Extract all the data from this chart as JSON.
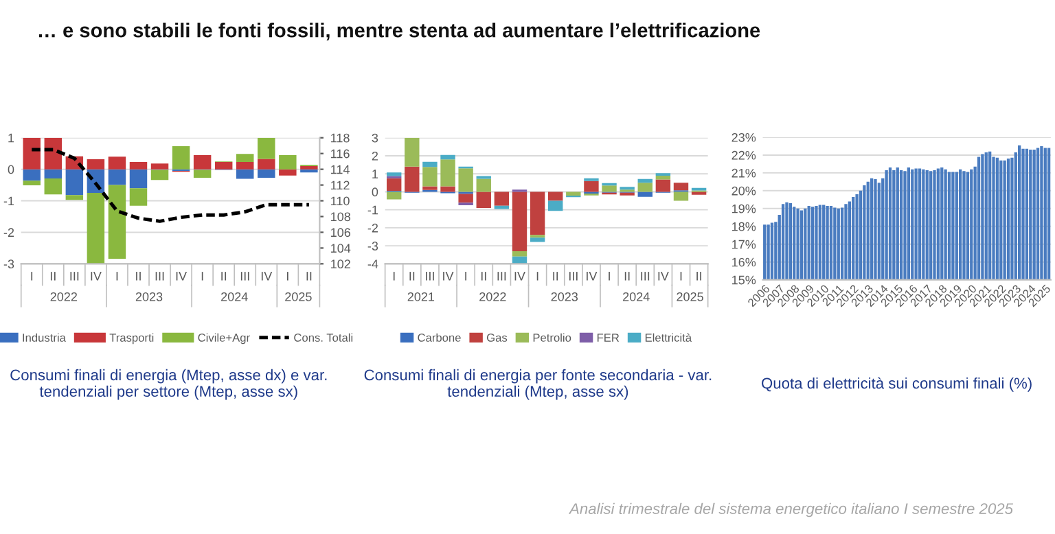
{
  "chart_data": [
    {
      "type": "bar",
      "title": "… e sono stabili le fonti fossili, mentre stenta ad aumentare l’elettrificazione",
      "categories": [
        "I",
        "II",
        "III",
        "IV",
        "I",
        "II",
        "III",
        "IV",
        "I",
        "II",
        "III",
        "IV",
        "I",
        "II"
      ],
      "series": [
        {
          "name": "Industria",
          "color": "#3a6fbf",
          "values": [
            -0.36,
            -0.29,
            -0.82,
            -0.75,
            -0.5,
            -0.6,
            -0.02,
            -0.05,
            -0.02,
            -0.02,
            -0.3,
            -0.27,
            0,
            -0.1
          ]
        },
        {
          "name": "Trasporti",
          "color": "#c8373a",
          "values": [
            1.0,
            1.0,
            0.41,
            0.32,
            0.4,
            0.23,
            0.18,
            -0.03,
            0.45,
            0.23,
            0.23,
            0.33,
            -0.2,
            0.1
          ]
        },
        {
          "name": "Civile+Agr",
          "color": "#8ab83f",
          "values": [
            -0.15,
            -0.51,
            -0.15,
            -2.25,
            -2.34,
            -0.56,
            -0.32,
            0.73,
            -0.25,
            0.02,
            0.26,
            0.67,
            0.45,
            0.04
          ]
        },
        {
          "name": "Cons. Totali",
          "type": "line",
          "axis": "y2",
          "color": "#000000",
          "line_style": "dashed",
          "values": [
            116.5,
            116.5,
            115.4,
            112.2,
            108.7,
            107.8,
            107.4,
            107.9,
            108.2,
            108.2,
            108.6,
            109.5,
            109.5,
            109.5
          ]
        }
      ],
      "stacked": true,
      "ylim": [
        -3,
        1
      ],
      "yticks": [
        -3,
        -2,
        -1,
        0,
        1
      ],
      "y2lim": [
        102,
        118
      ],
      "y2ticks": [
        102,
        104,
        106,
        108,
        110,
        112,
        114,
        116,
        118
      ],
      "grid": "y",
      "legend": "bottom",
      "annotations": [
        "2022",
        "2023",
        "2024",
        "2025",
        "Consumi finali di energia (Mtep, asse dx) e var. tendenziali per settore (Mtep, asse sx)"
      ]
    },
    {
      "type": "bar",
      "categories": [
        "I",
        "II",
        "III",
        "IV",
        "I",
        "II",
        "III",
        "IV",
        "I",
        "II",
        "III",
        "IV",
        "I",
        "II",
        "III",
        "IV",
        "I",
        "II"
      ],
      "series": [
        {
          "name": "Carbone",
          "color": "#3a6fbf",
          "values": [
            0.05,
            -0.05,
            0.1,
            -0.08,
            -0.12,
            0,
            0,
            0,
            0,
            0,
            0,
            -0.1,
            -0.05,
            -0.05,
            -0.28,
            -0.05,
            0.08,
            0
          ]
        },
        {
          "name": "Gas",
          "color": "#c0413f",
          "values": [
            0.7,
            1.4,
            0.2,
            0.3,
            -0.48,
            -0.9,
            -0.78,
            -3.3,
            -2.4,
            -0.5,
            0,
            0.6,
            -0.1,
            -0.15,
            0,
            0.68,
            0.42,
            -0.17
          ]
        },
        {
          "name": "Petrolio",
          "color": "#9bbb59",
          "values": [
            -0.42,
            1.6,
            1.08,
            1.5,
            1.3,
            0.72,
            0,
            -0.3,
            -0.15,
            0,
            -0.21,
            -0.1,
            0.35,
            0.12,
            0.5,
            0.21,
            -0.5,
            0.07
          ]
        },
        {
          "name": "FER",
          "color": "#7e5ea8",
          "values": [
            0.12,
            0,
            0,
            0,
            -0.15,
            0,
            0,
            0.12,
            0,
            0,
            0,
            0,
            0,
            0,
            0,
            0,
            0,
            0
          ]
        },
        {
          "name": "Elettricità",
          "color": "#4bacc6",
          "values": [
            0.2,
            0,
            0.28,
            0.25,
            0.1,
            0.15,
            -0.18,
            -0.4,
            -0.24,
            -0.56,
            -0.09,
            0.15,
            0.13,
            0.15,
            0.21,
            0.15,
            0,
            0.15
          ]
        }
      ],
      "stacked": true,
      "ylim": [
        -4,
        3
      ],
      "yticks": [
        -4,
        -3,
        -2,
        -1,
        0,
        1,
        2,
        3
      ],
      "grid": "y",
      "legend": "bottom",
      "annotations": [
        "2021",
        "2022",
        "2023",
        "2024",
        "2025",
        "Consumi finali di energia per fonte secondaria - var. tendenziali (Mtep, asse sx)"
      ]
    },
    {
      "type": "bar",
      "categories": [
        "2006",
        null,
        null,
        null,
        "2007",
        null,
        null,
        null,
        "2008",
        null,
        null,
        null,
        "2009",
        null,
        null,
        null,
        "2010",
        null,
        null,
        null,
        "2011",
        null,
        null,
        null,
        "2012",
        null,
        null,
        null,
        "2013",
        null,
        null,
        null,
        "2014",
        null,
        null,
        null,
        "2015",
        null,
        null,
        null,
        "2016",
        null,
        null,
        null,
        "2017",
        null,
        null,
        null,
        "2018",
        null,
        null,
        null,
        "2019",
        null,
        null,
        null,
        "2020",
        null,
        null,
        null,
        "2021",
        null,
        null,
        null,
        "2022",
        null,
        null,
        null,
        "2023",
        null,
        null,
        null,
        "2024",
        null,
        null,
        null,
        "2025",
        null
      ],
      "values": [
        18.1,
        18.1,
        18.2,
        18.25,
        18.65,
        19.25,
        19.35,
        19.3,
        19.1,
        19.0,
        18.9,
        19.0,
        19.15,
        19.1,
        19.15,
        19.2,
        19.2,
        19.15,
        19.15,
        19.05,
        19.0,
        19.05,
        19.25,
        19.4,
        19.65,
        19.8,
        20.0,
        20.3,
        20.5,
        20.7,
        20.65,
        20.45,
        20.7,
        21.15,
        21.3,
        21.15,
        21.3,
        21.15,
        21.1,
        21.3,
        21.2,
        21.25,
        21.25,
        21.2,
        21.15,
        21.1,
        21.15,
        21.25,
        21.3,
        21.2,
        21.05,
        21.05,
        21.05,
        21.2,
        21.1,
        21.05,
        21.2,
        21.35,
        21.9,
        22.05,
        22.15,
        22.2,
        21.9,
        21.85,
        21.7,
        21.7,
        21.8,
        21.85,
        22.15,
        22.55,
        22.35,
        22.35,
        22.3,
        22.3,
        22.4,
        22.5,
        22.4,
        22.4
      ],
      "color": "#4a7cc0",
      "ylim": [
        15,
        23
      ],
      "yticks": [
        {
          "value": 15,
          "label": "15%"
        },
        {
          "value": 16,
          "label": "16%"
        },
        {
          "value": 17,
          "label": "17%"
        },
        {
          "value": 18,
          "label": "18%"
        },
        {
          "value": 19,
          "label": "19%"
        },
        {
          "value": 20,
          "label": "20%"
        },
        {
          "value": 21,
          "label": "21%"
        },
        {
          "value": 22,
          "label": "22%"
        },
        {
          "value": 23,
          "label": "23%"
        }
      ],
      "grid": "y",
      "annotations": [
        "Quota di elettricità sui consumi finali (%)",
        "Analisi trimestrale del sistema energetico italiano I semestre 2025"
      ]
    }
  ]
}
